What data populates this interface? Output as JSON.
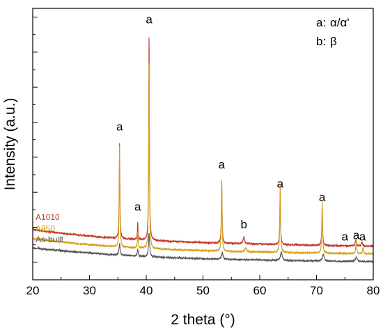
{
  "chart_data": {
    "type": "line",
    "xlabel": "2 theta (°)",
    "ylabel": "Intensity (a.u.)",
    "xlim": [
      20,
      80
    ],
    "xticks": [
      20,
      30,
      40,
      50,
      60,
      70,
      80
    ],
    "grid": false,
    "legend": {
      "position": "top-right",
      "entries": [
        {
          "label": "a:",
          "symbol": "α/α'"
        },
        {
          "label": "b:",
          "symbol": "β"
        }
      ]
    },
    "series": [
      {
        "name": "A1010",
        "color": "#c0392b",
        "background": [
          [
            20,
            0.37
          ],
          [
            24,
            0.348
          ],
          [
            28,
            0.33
          ],
          [
            32,
            0.315
          ],
          [
            36,
            0.302
          ],
          [
            40,
            0.292
          ],
          [
            45,
            0.282
          ],
          [
            50,
            0.274
          ],
          [
            55,
            0.268
          ],
          [
            60,
            0.263
          ],
          [
            65,
            0.258
          ],
          [
            70,
            0.254
          ],
          [
            75,
            0.25
          ],
          [
            80,
            0.248
          ]
        ],
        "peaks": [
          {
            "x": 35.3,
            "height": 0.7,
            "width": 0.12
          },
          {
            "x": 38.5,
            "height": 0.13,
            "width": 0.12
          },
          {
            "x": 40.5,
            "height": 1.52,
            "width": 0.12
          },
          {
            "x": 53.3,
            "height": 0.45,
            "width": 0.13
          },
          {
            "x": 57.2,
            "height": 0.05,
            "width": 0.25
          },
          {
            "x": 63.6,
            "height": 0.38,
            "width": 0.13
          },
          {
            "x": 71.0,
            "height": 0.26,
            "width": 0.14
          },
          {
            "x": 76.9,
            "height": 0.04,
            "width": 0.2
          },
          {
            "x": 78.0,
            "height": 0.03,
            "width": 0.2
          }
        ]
      },
      {
        "name": "A950",
        "color": "#d4a017",
        "background": [
          [
            20,
            0.305
          ],
          [
            24,
            0.283
          ],
          [
            28,
            0.266
          ],
          [
            32,
            0.252
          ],
          [
            36,
            0.24
          ],
          [
            40,
            0.231
          ],
          [
            45,
            0.222
          ],
          [
            50,
            0.215
          ],
          [
            55,
            0.209
          ],
          [
            60,
            0.205
          ],
          [
            65,
            0.201
          ],
          [
            70,
            0.197
          ],
          [
            75,
            0.194
          ],
          [
            80,
            0.192
          ]
        ],
        "peaks": [
          {
            "x": 35.3,
            "height": 0.74,
            "width": 0.12
          },
          {
            "x": 38.5,
            "height": 0.12,
            "width": 0.12
          },
          {
            "x": 40.5,
            "height": 1.4,
            "width": 0.12
          },
          {
            "x": 53.3,
            "height": 0.52,
            "width": 0.13
          },
          {
            "x": 57.5,
            "height": 0.03,
            "width": 0.25
          },
          {
            "x": 63.6,
            "height": 0.52,
            "width": 0.13
          },
          {
            "x": 71.0,
            "height": 0.38,
            "width": 0.14
          },
          {
            "x": 77.0,
            "height": 0.11,
            "width": 0.14
          },
          {
            "x": 78.2,
            "height": 0.05,
            "width": 0.14
          }
        ]
      },
      {
        "name": "As-built",
        "color": "#555555",
        "background": [
          [
            20,
            0.235
          ],
          [
            24,
            0.218
          ],
          [
            28,
            0.204
          ],
          [
            32,
            0.191
          ],
          [
            36,
            0.18
          ],
          [
            40,
            0.171
          ],
          [
            45,
            0.162
          ],
          [
            50,
            0.155
          ],
          [
            55,
            0.15
          ],
          [
            60,
            0.146
          ],
          [
            65,
            0.142
          ],
          [
            70,
            0.139
          ],
          [
            75,
            0.136
          ],
          [
            80,
            0.134
          ]
        ],
        "peaks": [
          {
            "x": 35.3,
            "height": 0.09,
            "width": 0.18
          },
          {
            "x": 38.5,
            "height": 0.05,
            "width": 0.18
          },
          {
            "x": 40.5,
            "height": 0.17,
            "width": 0.2
          },
          {
            "x": 53.4,
            "height": 0.05,
            "width": 0.25
          },
          {
            "x": 63.8,
            "height": 0.06,
            "width": 0.3
          },
          {
            "x": 71.2,
            "height": 0.05,
            "width": 0.3
          },
          {
            "x": 77.0,
            "height": 0.03,
            "width": 0.3
          }
        ]
      }
    ],
    "annotations": [
      {
        "text": "a",
        "x": 35.3,
        "y": 1.1
      },
      {
        "text": "a",
        "x": 38.5,
        "y": 0.51
      },
      {
        "text": "a",
        "x": 40.5,
        "y": 1.89
      },
      {
        "text": "a",
        "x": 53.3,
        "y": 0.82
      },
      {
        "text": "b",
        "x": 57.2,
        "y": 0.38
      },
      {
        "text": "a",
        "x": 63.6,
        "y": 0.68
      },
      {
        "text": "a",
        "x": 71.0,
        "y": 0.58
      },
      {
        "text": "a",
        "x": 75.0,
        "y": 0.29
      },
      {
        "text": "a",
        "x": 77.0,
        "y": 0.3
      },
      {
        "text": "a",
        "x": 78.1,
        "y": 0.29
      }
    ]
  }
}
